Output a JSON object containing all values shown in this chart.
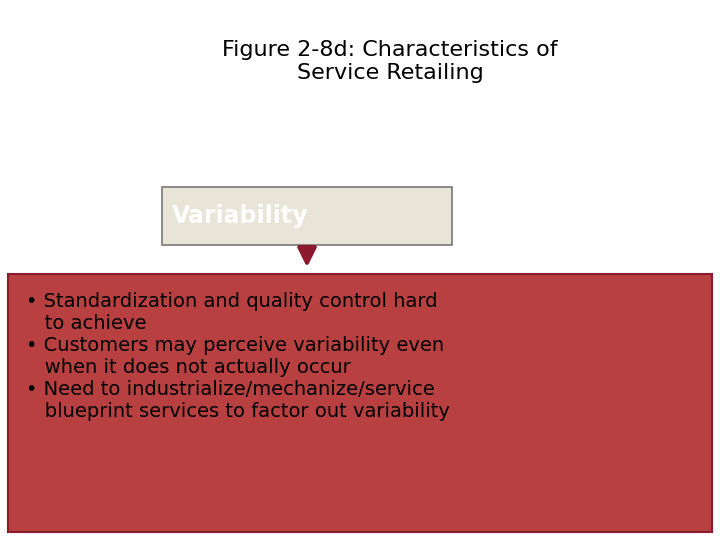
{
  "title": "Figure 2-8d: Characteristics of\nService Retailing",
  "title_fontsize": 16,
  "title_color": "#000000",
  "background_color": "#ffffff",
  "variability_box_text": "Variability",
  "variability_box_bg": "#e8e4d8",
  "variability_box_edge": "#777777",
  "variability_text_color": "#ffffff",
  "variability_text_fontsize": 17,
  "arrow_color": "#8b1a2e",
  "bullet_box_bg": "#b94040",
  "bullet_box_edge": "#8b1a2e",
  "bullet_text_color": "#000000",
  "bullet_fontsize": 14,
  "bullet_lines": [
    "• Standardization and quality control hard",
    "   to achieve",
    "• Customers may perceive variability even",
    "   when it does not actually occur",
    "• Need to industrialize/mechanize/service",
    "   blueprint services to factor out variability"
  ]
}
